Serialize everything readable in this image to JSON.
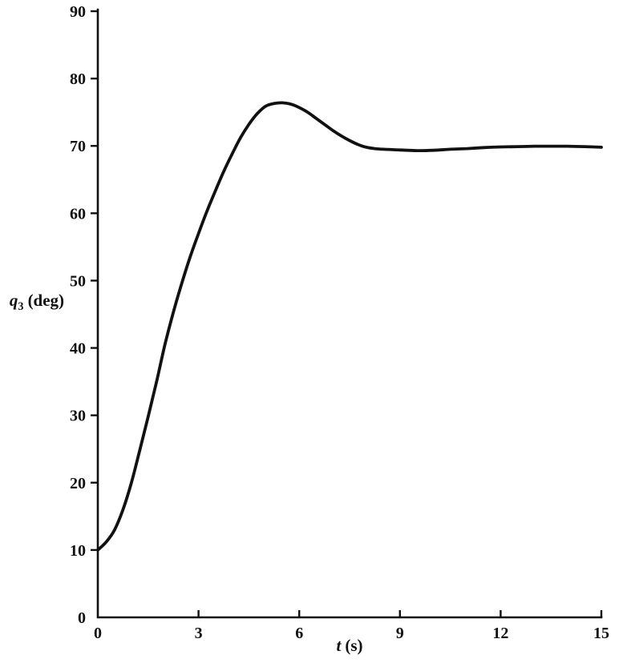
{
  "figure": {
    "background": "#ffffff",
    "ink_color": "#111111"
  },
  "chart_data": {
    "type": "line",
    "xlabel_var": "t",
    "xlabel_unit": "(s)",
    "ylabel_var": "q",
    "ylabel_sub": "3",
    "ylabel_unit": "(deg)",
    "xlim": [
      0,
      15
    ],
    "ylim": [
      0,
      90
    ],
    "x_ticks": [
      0,
      3,
      6,
      9,
      12,
      15
    ],
    "y_ticks": [
      0,
      10,
      20,
      30,
      40,
      50,
      60,
      70,
      80,
      90
    ],
    "grid": false,
    "legend": "none",
    "series": [
      {
        "name": "q3",
        "points": [
          [
            0,
            10
          ],
          [
            0.25,
            11.2
          ],
          [
            0.5,
            13
          ],
          [
            0.75,
            16
          ],
          [
            1,
            20
          ],
          [
            1.25,
            24.8
          ],
          [
            1.5,
            29.8
          ],
          [
            1.75,
            35
          ],
          [
            2,
            40.5
          ],
          [
            2.25,
            45.3
          ],
          [
            2.5,
            49.6
          ],
          [
            2.75,
            53.5
          ],
          [
            3,
            57
          ],
          [
            3.25,
            60.3
          ],
          [
            3.5,
            63.3
          ],
          [
            3.75,
            66.2
          ],
          [
            4,
            68.8
          ],
          [
            4.25,
            71.2
          ],
          [
            4.5,
            73.2
          ],
          [
            4.75,
            74.8
          ],
          [
            5,
            75.9
          ],
          [
            5.25,
            76.3
          ],
          [
            5.5,
            76.4
          ],
          [
            5.75,
            76.2
          ],
          [
            6,
            75.7
          ],
          [
            6.25,
            75
          ],
          [
            6.5,
            74.1
          ],
          [
            6.75,
            73.2
          ],
          [
            7,
            72.3
          ],
          [
            7.25,
            71.5
          ],
          [
            7.5,
            70.8
          ],
          [
            7.75,
            70.2
          ],
          [
            8,
            69.8
          ],
          [
            8.25,
            69.6
          ],
          [
            8.5,
            69.5
          ],
          [
            9,
            69.4
          ],
          [
            9.5,
            69.3
          ],
          [
            10,
            69.35
          ],
          [
            10.5,
            69.5
          ],
          [
            11,
            69.6
          ],
          [
            11.5,
            69.75
          ],
          [
            12,
            69.85
          ],
          [
            12.5,
            69.9
          ],
          [
            13,
            69.95
          ],
          [
            13.5,
            69.95
          ],
          [
            14,
            69.95
          ],
          [
            14.5,
            69.9
          ],
          [
            15,
            69.8
          ]
        ]
      }
    ]
  }
}
